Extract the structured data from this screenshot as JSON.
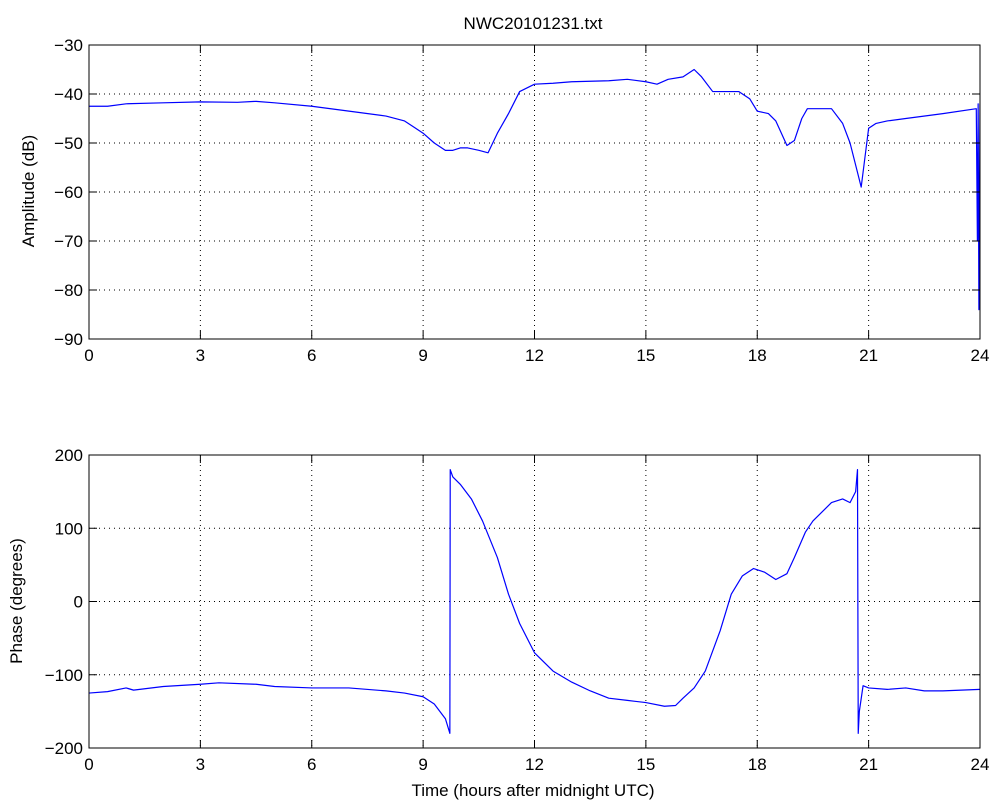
{
  "chart_data": [
    {
      "type": "line",
      "title": "NWC20101231.txt",
      "xlabel": "",
      "ylabel": "Amplitude (dB)",
      "xlim": [
        0,
        24
      ],
      "ylim": [
        -90,
        -30
      ],
      "xticks": [
        0,
        3,
        6,
        9,
        12,
        15,
        18,
        21,
        24
      ],
      "yticks": [
        -90,
        -80,
        -70,
        -60,
        -50,
        -40,
        -30
      ],
      "xtick_labels": [
        "0",
        "3",
        "6",
        "9",
        "12",
        "15",
        "18",
        "21",
        "24"
      ],
      "ytick_labels": [
        "−90",
        "−80",
        "−70",
        "−60",
        "−50",
        "−40",
        "−30"
      ],
      "grid": true,
      "series": [
        {
          "color": "#0000ff",
          "x": [
            0,
            0.5,
            1,
            2,
            3,
            4,
            4.5,
            5,
            6,
            7,
            8,
            8.5,
            9,
            9.3,
            9.6,
            9.8,
            10.0,
            10.2,
            10.5,
            10.75,
            11.0,
            11.3,
            11.6,
            12.0,
            12.5,
            13,
            14,
            14.5,
            15,
            15.3,
            15.6,
            16,
            16.3,
            16.5,
            16.8,
            17.1,
            17.5,
            17.8,
            18.0,
            18.3,
            18.5,
            18.8,
            19.0,
            19.2,
            19.35,
            19.5,
            19.7,
            20.0,
            20.3,
            20.5,
            20.7,
            20.8,
            20.9,
            21.0,
            21.2,
            21.5,
            22,
            23,
            23.9,
            23.93,
            23.95,
            23.97,
            24.0
          ],
          "y": [
            -42.5,
            -42.5,
            -42,
            -41.8,
            -41.6,
            -41.7,
            -41.5,
            -41.8,
            -42.5,
            -43.5,
            -44.5,
            -45.5,
            -48,
            -50,
            -51.5,
            -51.5,
            -51,
            -51,
            -51.5,
            -52,
            -48,
            -44,
            -39.5,
            -38,
            -37.8,
            -37.5,
            -37.3,
            -37,
            -37.5,
            -38,
            -37,
            -36.5,
            -35,
            -36.5,
            -39.5,
            -39.5,
            -39.5,
            -41,
            -43.5,
            -44,
            -45.5,
            -50.5,
            -49.5,
            -45,
            -43,
            -43,
            -43,
            -43,
            -46,
            -50,
            -56,
            -59,
            -53,
            -47,
            -46,
            -45.5,
            -45,
            -44,
            -43,
            -70,
            -42,
            -84,
            -42
          ]
        }
      ]
    },
    {
      "type": "line",
      "title": "",
      "xlabel": "Time (hours after midnight UTC)",
      "ylabel": "Phase (degrees)",
      "xlim": [
        0,
        24
      ],
      "ylim": [
        -200,
        200
      ],
      "xticks": [
        0,
        3,
        6,
        9,
        12,
        15,
        18,
        21,
        24
      ],
      "yticks": [
        -200,
        -100,
        0,
        100,
        200
      ],
      "xtick_labels": [
        "0",
        "3",
        "6",
        "9",
        "12",
        "15",
        "18",
        "21",
        "24"
      ],
      "ytick_labels": [
        "−200",
        "−100",
        "0",
        "100",
        "200"
      ],
      "grid": true,
      "series": [
        {
          "color": "#0000ff",
          "x": [
            0,
            0.5,
            1,
            1.2,
            2,
            3,
            3.5,
            4.5,
            5,
            6,
            7,
            8,
            8.5,
            9,
            9.3,
            9.6,
            9.72,
            9.73,
            9.8,
            10.0,
            10.3,
            10.6,
            11.0,
            11.3,
            11.6,
            12.0,
            12.5,
            13,
            13.5,
            14,
            14.5,
            15,
            15.5,
            15.8,
            16.0,
            16.3,
            16.6,
            17.0,
            17.3,
            17.6,
            17.9,
            18.2,
            18.5,
            18.8,
            19.0,
            19.3,
            19.5,
            20.0,
            20.3,
            20.5,
            20.65,
            20.7,
            20.72,
            20.75,
            20.85,
            21.0,
            21.5,
            22,
            22.5,
            23,
            24
          ],
          "y": [
            -125,
            -123,
            -118,
            -121,
            -116,
            -113,
            -111,
            -113,
            -116,
            -118,
            -118,
            -122,
            -125,
            -130,
            -140,
            -160,
            -180,
            180,
            170,
            160,
            140,
            110,
            60,
            10,
            -30,
            -70,
            -95,
            -110,
            -122,
            -132,
            -135,
            -138,
            -143,
            -142,
            -132,
            -118,
            -95,
            -40,
            10,
            35,
            45,
            40,
            30,
            38,
            60,
            95,
            110,
            135,
            140,
            135,
            150,
            180,
            -180,
            -150,
            -115,
            -118,
            -120,
            -118,
            -122,
            -122,
            -120
          ]
        }
      ]
    }
  ]
}
